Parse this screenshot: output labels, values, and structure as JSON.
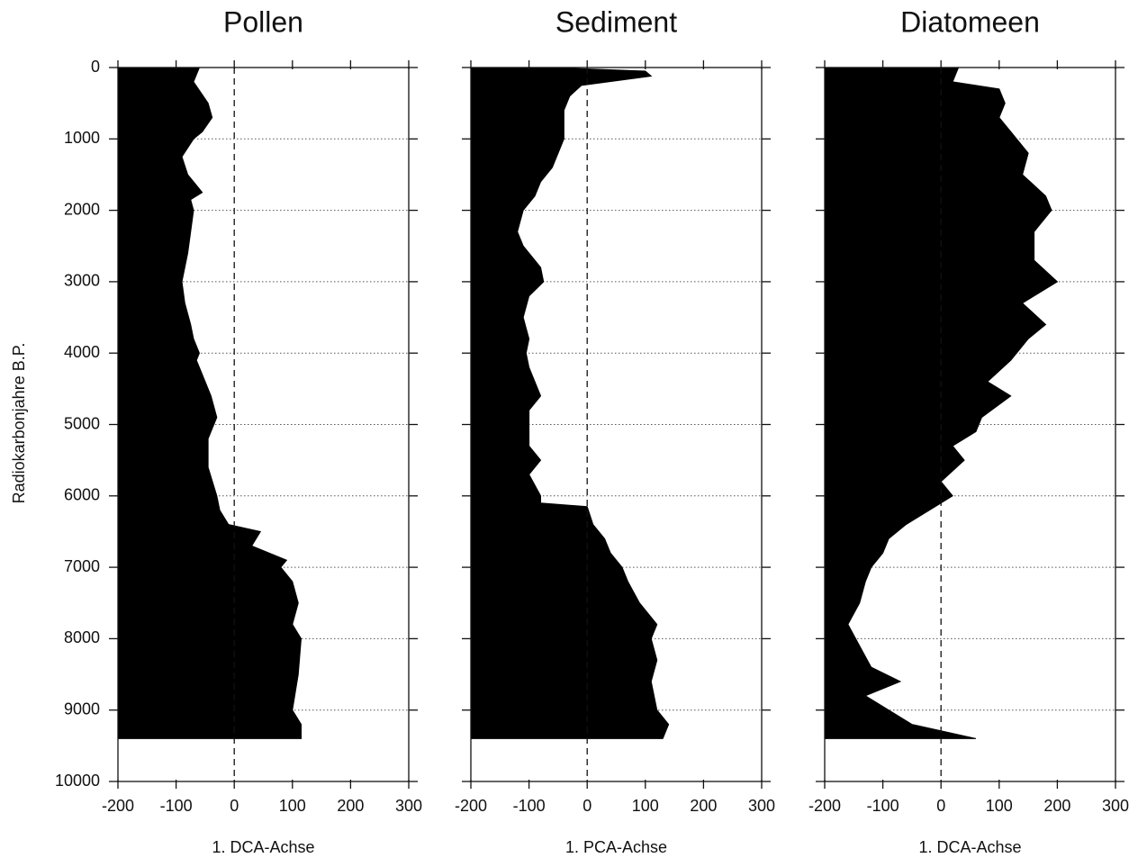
{
  "y_label": "Radiokarbonjahre B.P.",
  "chart_data": [
    {
      "type": "area",
      "title": "Pollen",
      "x_label": "1. DCA-Achse",
      "color": "#000000",
      "y": [
        0,
        100,
        200,
        500,
        700,
        900,
        1000,
        1250,
        1500,
        1750,
        1850,
        2000,
        2300,
        2600,
        2800,
        3000,
        3300,
        3600,
        3800,
        4000,
        4100,
        4300,
        4600,
        4900,
        5200,
        5600,
        6000,
        6200,
        6400,
        6500,
        6700,
        6900,
        7000,
        7200,
        7500,
        7800,
        8000,
        8500,
        9000,
        9200,
        9400
      ],
      "values": [
        -60,
        -65,
        -70,
        -45,
        -38,
        -55,
        -70,
        -90,
        -80,
        -55,
        -75,
        -70,
        -75,
        -80,
        -85,
        -90,
        -85,
        -75,
        -70,
        -60,
        -65,
        -55,
        -40,
        -30,
        -45,
        -45,
        -30,
        -25,
        -10,
        45,
        30,
        90,
        80,
        100,
        110,
        100,
        115,
        110,
        100,
        115,
        115
      ],
      "xlim": [
        -200,
        300
      ],
      "xticks": [
        -200,
        -100,
        0,
        100,
        200,
        300
      ],
      "ylim": [
        0,
        10000
      ],
      "yticks": [
        0,
        1000,
        2000,
        3000,
        4000,
        5000,
        6000,
        7000,
        8000,
        9000,
        10000
      ],
      "y_inverted": true,
      "grid": true
    },
    {
      "type": "area",
      "title": "Sediment",
      "x_label": "1. PCA-Achse",
      "color": "#000000",
      "y": [
        0,
        50,
        120,
        250,
        400,
        600,
        800,
        1000,
        1200,
        1400,
        1600,
        1800,
        2000,
        2300,
        2500,
        2700,
        2800,
        3000,
        3200,
        3500,
        3800,
        4000,
        4200,
        4400,
        4600,
        4800,
        5000,
        5300,
        5500,
        5700,
        6000,
        6100,
        6150,
        6400,
        6600,
        6800,
        7000,
        7200,
        7500,
        7800,
        8000,
        8300,
        8600,
        8800,
        9000,
        9200,
        9400
      ],
      "values": [
        -60,
        100,
        110,
        -10,
        -30,
        -40,
        -40,
        -40,
        -50,
        -60,
        -80,
        -90,
        -110,
        -120,
        -110,
        -90,
        -80,
        -75,
        -100,
        -110,
        -100,
        -105,
        -100,
        -90,
        -80,
        -100,
        -100,
        -100,
        -80,
        -100,
        -80,
        -80,
        0,
        10,
        30,
        40,
        60,
        70,
        90,
        120,
        110,
        120,
        110,
        115,
        120,
        140,
        130
      ],
      "xlim": [
        -200,
        300
      ],
      "xticks": [
        -200,
        -100,
        0,
        100,
        200,
        300
      ],
      "ylim": [
        0,
        10000
      ],
      "yticks": [
        0,
        1000,
        2000,
        3000,
        4000,
        5000,
        6000,
        7000,
        8000,
        9000,
        10000
      ],
      "y_inverted": true,
      "grid": true
    },
    {
      "type": "area",
      "title": "Diatomeen",
      "x_label": "1. DCA-Achse",
      "color": "#000000",
      "y": [
        0,
        200,
        300,
        500,
        700,
        900,
        1200,
        1500,
        1800,
        2000,
        2300,
        2700,
        3000,
        3300,
        3600,
        3800,
        4100,
        4400,
        4600,
        4900,
        5100,
        5300,
        5500,
        5800,
        6000,
        6200,
        6400,
        6600,
        6800,
        7000,
        7200,
        7500,
        7800,
        8100,
        8400,
        8600,
        8800,
        9000,
        9200,
        9400
      ],
      "values": [
        30,
        20,
        100,
        110,
        100,
        120,
        150,
        140,
        180,
        190,
        160,
        160,
        200,
        140,
        180,
        150,
        120,
        80,
        120,
        70,
        60,
        20,
        40,
        0,
        20,
        -20,
        -60,
        -90,
        -100,
        -120,
        -130,
        -140,
        -160,
        -140,
        -120,
        -70,
        -130,
        -90,
        -50,
        60
      ],
      "xlim": [
        -200,
        300
      ],
      "xticks": [
        -200,
        -100,
        0,
        100,
        200,
        300
      ],
      "ylim": [
        0,
        10000
      ],
      "yticks": [
        0,
        1000,
        2000,
        3000,
        4000,
        5000,
        6000,
        7000,
        8000,
        9000,
        10000
      ],
      "y_inverted": true,
      "grid": true
    }
  ]
}
